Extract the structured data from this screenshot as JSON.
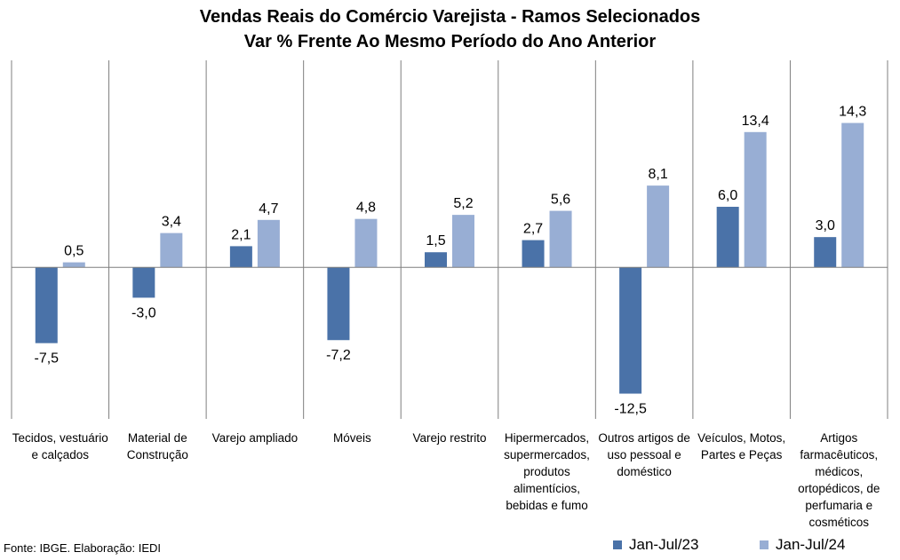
{
  "chart_data": {
    "type": "bar",
    "title": "Vendas Reais do Comércio Varejista - Ramos Selecionados",
    "subtitle": "Var % Frente Ao Mesmo Período do Ano Anterior",
    "categories": [
      "Tecidos, vestuário e calçados",
      "Material de Construção",
      "Varejo ampliado",
      "Móveis",
      "Varejo restrito",
      "Hipermercados, supermercados, produtos alimentícios, bebidas e fumo",
      "Outros artigos de uso pessoal e doméstico",
      "Veículos, Motos, Partes e Peças",
      "Artigos farmacêuticos, médicos, ortopédicos, de perfumaria e cosméticos"
    ],
    "series": [
      {
        "name": "Jan-Jul/23",
        "color": "#4a72a8",
        "values": [
          -7.5,
          -3.0,
          2.1,
          -7.2,
          1.5,
          2.7,
          -12.5,
          6.0,
          3.0
        ],
        "labels": [
          "-7,5",
          "-3,0",
          "2,1",
          "-7,2",
          "1,5",
          "2,7",
          "-12,5",
          "6,0",
          "3,0"
        ]
      },
      {
        "name": "Jan-Jul/24",
        "color": "#98aed4",
        "values": [
          0.5,
          3.4,
          4.7,
          4.8,
          5.2,
          5.6,
          8.1,
          13.4,
          14.3
        ],
        "labels": [
          "0,5",
          "3,4",
          "4,7",
          "4,8",
          "5,2",
          "5,6",
          "8,1",
          "13,4",
          "14,3"
        ]
      }
    ],
    "ylim": [
      -15.0,
      20.5
    ],
    "grid": false,
    "legend": "bottom-right"
  },
  "source": "Fonte: IBGE. Elaboração: IEDI"
}
